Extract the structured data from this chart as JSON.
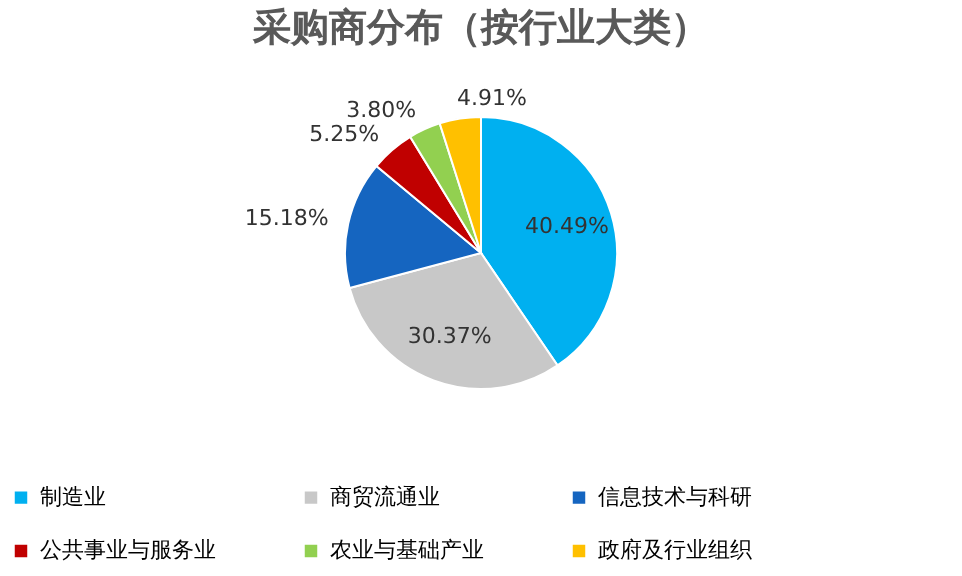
{
  "chart_data": {
    "type": "pie",
    "title": "采购商分布（按行业大类）",
    "categories": [
      "制造业",
      "商贸流通业",
      "信息技术与科研",
      "公共事业与服务业",
      "农业与基础产业",
      "政府及行业组织"
    ],
    "values": [
      40.49,
      30.37,
      15.18,
      5.25,
      3.8,
      4.91
    ],
    "value_labels": [
      "40.49%",
      "30.37%",
      "15.18%",
      "5.25%",
      "3.80%",
      "4.91%"
    ],
    "colors": [
      "#00b0f0",
      "#c8c8c8",
      "#1565c0",
      "#c00000",
      "#92d050",
      "#ffc000"
    ],
    "legend": "bottom"
  }
}
